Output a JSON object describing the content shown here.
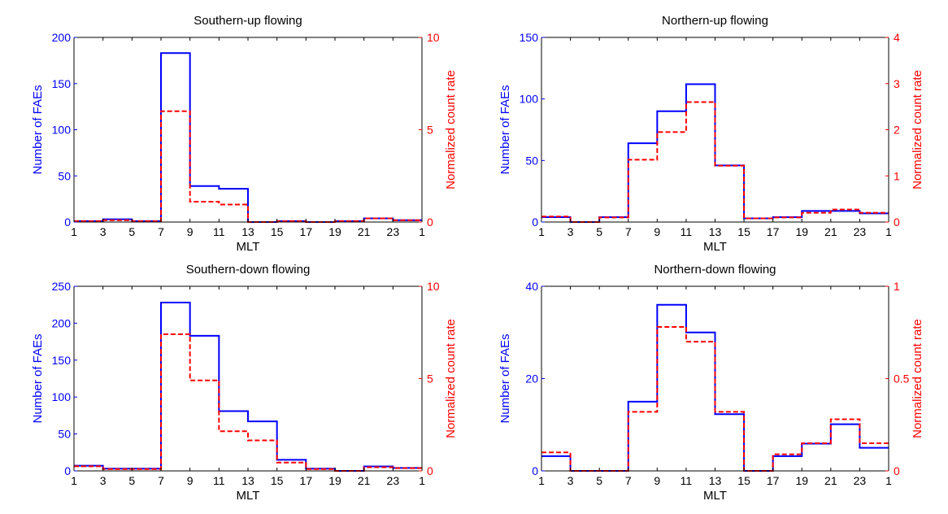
{
  "colors": {
    "left_axis": "#0000ff",
    "right_axis": "#ff0000",
    "axis": "#000000"
  },
  "chart_data": [
    {
      "type": "line",
      "title": "Southern-up flowing",
      "xlabel": "MLT",
      "ylabel_left": "Number of FAEs",
      "ylabel_right": "Normalized count rate",
      "x_ticks": [
        "1",
        "3",
        "5",
        "7",
        "9",
        "11",
        "13",
        "15",
        "17",
        "19",
        "21",
        "23",
        "1"
      ],
      "ylim_left": [
        0,
        200
      ],
      "yticks_left": [
        "0",
        "50",
        "100",
        "150",
        "200"
      ],
      "ylim_right": [
        0,
        10
      ],
      "yticks_right": [
        "0",
        "5",
        "10"
      ],
      "series": [
        {
          "axis": "left",
          "style": "solid",
          "values": [
            1,
            3,
            1,
            183,
            39,
            36,
            0,
            1,
            0,
            1,
            4,
            2
          ]
        },
        {
          "axis": "right",
          "style": "dashed",
          "values": [
            0.05,
            0.1,
            0.05,
            6.0,
            1.1,
            0.95,
            0,
            0.05,
            0,
            0.05,
            0.2,
            0.1
          ]
        }
      ]
    },
    {
      "type": "line",
      "title": "Northern-up flowing",
      "xlabel": "MLT",
      "ylabel_left": "Number of FAEs",
      "ylabel_right": "Normalized count rate",
      "x_ticks": [
        "1",
        "3",
        "5",
        "7",
        "9",
        "11",
        "13",
        "15",
        "17",
        "19",
        "21",
        "23",
        "1"
      ],
      "ylim_left": [
        0,
        150
      ],
      "yticks_left": [
        "0",
        "50",
        "100",
        "150"
      ],
      "ylim_right": [
        0,
        4
      ],
      "yticks_right": [
        "0",
        "1",
        "2",
        "3",
        "4"
      ],
      "series": [
        {
          "axis": "left",
          "style": "solid",
          "values": [
            4,
            0,
            4,
            64,
            90,
            112,
            46,
            3,
            4,
            9,
            9,
            7
          ]
        },
        {
          "axis": "right",
          "style": "dashed",
          "values": [
            0.12,
            0,
            0.1,
            1.35,
            1.95,
            2.6,
            1.22,
            0.08,
            0.1,
            0.2,
            0.27,
            0.2
          ]
        }
      ]
    },
    {
      "type": "line",
      "title": "Southern-down flowing",
      "xlabel": "MLT",
      "ylabel_left": "Number of FAEs",
      "ylabel_right": "Normalized count rate",
      "x_ticks": [
        "1",
        "3",
        "5",
        "7",
        "9",
        "11",
        "13",
        "15",
        "17",
        "19",
        "21",
        "23",
        "1"
      ],
      "ylim_left": [
        0,
        250
      ],
      "yticks_left": [
        "0",
        "50",
        "100",
        "150",
        "200",
        "250"
      ],
      "ylim_right": [
        0,
        10
      ],
      "yticks_right": [
        "0",
        "5",
        "10"
      ],
      "series": [
        {
          "axis": "left",
          "style": "solid",
          "values": [
            7,
            3,
            3,
            228,
            183,
            81,
            67,
            15,
            3,
            0,
            6,
            4
          ]
        },
        {
          "axis": "right",
          "style": "dashed",
          "values": [
            0.25,
            0.1,
            0.1,
            7.4,
            4.9,
            2.15,
            1.65,
            0.45,
            0.1,
            0,
            0.2,
            0.15
          ]
        }
      ]
    },
    {
      "type": "line",
      "title": "Northern-down flowing",
      "xlabel": "MLT",
      "ylabel_left": "Number of FAEs",
      "ylabel_right": "Normalized count rate",
      "x_ticks": [
        "1",
        "3",
        "5",
        "7",
        "9",
        "11",
        "13",
        "15",
        "17",
        "19",
        "21",
        "23",
        "1"
      ],
      "ylim_left": [
        0,
        40
      ],
      "yticks_left": [
        "0",
        "20",
        "40"
      ],
      "ylim_right": [
        0,
        1
      ],
      "yticks_right": [
        "0",
        "0.5",
        "1"
      ],
      "series": [
        {
          "axis": "left",
          "style": "solid",
          "values": [
            3.2,
            0,
            0,
            15,
            36,
            30,
            12.3,
            0,
            3.2,
            5.9,
            10.1,
            5
          ]
        },
        {
          "axis": "right",
          "style": "dashed",
          "values": [
            0.1,
            0,
            0,
            0.32,
            0.78,
            0.7,
            0.32,
            0,
            0.09,
            0.15,
            0.28,
            0.15
          ]
        }
      ]
    }
  ]
}
